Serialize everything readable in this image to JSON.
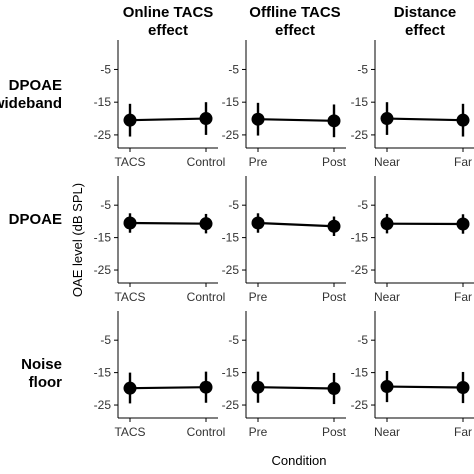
{
  "figure": {
    "xlabel": "Condition",
    "ylabel": "OAE level (dB SPL)",
    "columns": [
      {
        "title_line1": "Online TACS",
        "title_line2": "effect"
      },
      {
        "title_line1": "Offline TACS",
        "title_line2": "effect"
      },
      {
        "title_line1": "Distance",
        "title_line2": "effect"
      }
    ],
    "rows": [
      {
        "label_line1": "DPOAE",
        "label_line2": "wideband"
      },
      {
        "label_line1": "DPOAE",
        "label_line2": ""
      },
      {
        "label_line1": "Noise",
        "label_line2": "floor"
      }
    ]
  },
  "chart_data": [
    {
      "type": "line",
      "row": "DPOAE wideband",
      "column": "Online TACS effect",
      "categories": [
        "TACS",
        "Control"
      ],
      "values": [
        -20.5,
        -20.0
      ],
      "error_low": [
        -25.5,
        -25.0
      ],
      "error_high": [
        -15.5,
        -15.0
      ],
      "yticks": [
        -5,
        -15,
        -25
      ],
      "ylim": [
        -29,
        4
      ]
    },
    {
      "type": "line",
      "row": "DPOAE wideband",
      "column": "Offline TACS effect",
      "categories": [
        "Pre",
        "Post"
      ],
      "values": [
        -20.2,
        -20.7
      ],
      "error_low": [
        -25.2,
        -25.7
      ],
      "error_high": [
        -15.2,
        -15.7
      ],
      "yticks": [
        -5,
        -15,
        -25
      ],
      "ylim": [
        -29,
        4
      ]
    },
    {
      "type": "line",
      "row": "DPOAE wideband",
      "column": "Distance effect",
      "categories": [
        "Near",
        "Far"
      ],
      "values": [
        -20.0,
        -20.5
      ],
      "error_low": [
        -25.0,
        -25.5
      ],
      "error_high": [
        -15.0,
        -15.5
      ],
      "yticks": [
        -5,
        -15,
        -25
      ],
      "ylim": [
        -29,
        4
      ]
    },
    {
      "type": "line",
      "row": "DPOAE",
      "column": "Online TACS effect",
      "categories": [
        "TACS",
        "Control"
      ],
      "values": [
        -10.5,
        -10.7
      ],
      "error_low": [
        -13.5,
        -13.7
      ],
      "error_high": [
        -7.5,
        -7.7
      ],
      "yticks": [
        -5,
        -15,
        -25
      ],
      "ylim": [
        -29,
        4
      ]
    },
    {
      "type": "line",
      "row": "DPOAE",
      "column": "Offline TACS effect",
      "categories": [
        "Pre",
        "Post"
      ],
      "values": [
        -10.5,
        -11.5
      ],
      "error_low": [
        -13.5,
        -14.5
      ],
      "error_high": [
        -7.5,
        -8.5
      ],
      "yticks": [
        -5,
        -15,
        -25
      ],
      "ylim": [
        -29,
        4
      ]
    },
    {
      "type": "line",
      "row": "DPOAE",
      "column": "Distance effect",
      "categories": [
        "Near",
        "Far"
      ],
      "values": [
        -10.7,
        -10.8
      ],
      "error_low": [
        -13.7,
        -13.8
      ],
      "error_high": [
        -7.7,
        -7.8
      ],
      "yticks": [
        -5,
        -15,
        -25
      ],
      "ylim": [
        -29,
        4
      ]
    },
    {
      "type": "line",
      "row": "Noise floor",
      "column": "Online TACS effect",
      "categories": [
        "TACS",
        "Control"
      ],
      "values": [
        -19.8,
        -19.5
      ],
      "error_low": [
        -24.5,
        -24.3
      ],
      "error_high": [
        -15.0,
        -14.7
      ],
      "yticks": [
        -5,
        -15,
        -25
      ],
      "ylim": [
        -29,
        4
      ]
    },
    {
      "type": "line",
      "row": "Noise floor",
      "column": "Offline TACS effect",
      "categories": [
        "Pre",
        "Post"
      ],
      "values": [
        -19.5,
        -19.9
      ],
      "error_low": [
        -24.3,
        -24.7
      ],
      "error_high": [
        -14.7,
        -15.1
      ],
      "yticks": [
        -5,
        -15,
        -25
      ],
      "ylim": [
        -29,
        4
      ]
    },
    {
      "type": "line",
      "row": "Noise floor",
      "column": "Distance effect",
      "categories": [
        "Near",
        "Far"
      ],
      "values": [
        -19.3,
        -19.6
      ],
      "error_low": [
        -24.1,
        -24.4
      ],
      "error_high": [
        -14.5,
        -14.8
      ],
      "yticks": [
        -5,
        -15,
        -25
      ],
      "ylim": [
        -29,
        4
      ]
    }
  ]
}
